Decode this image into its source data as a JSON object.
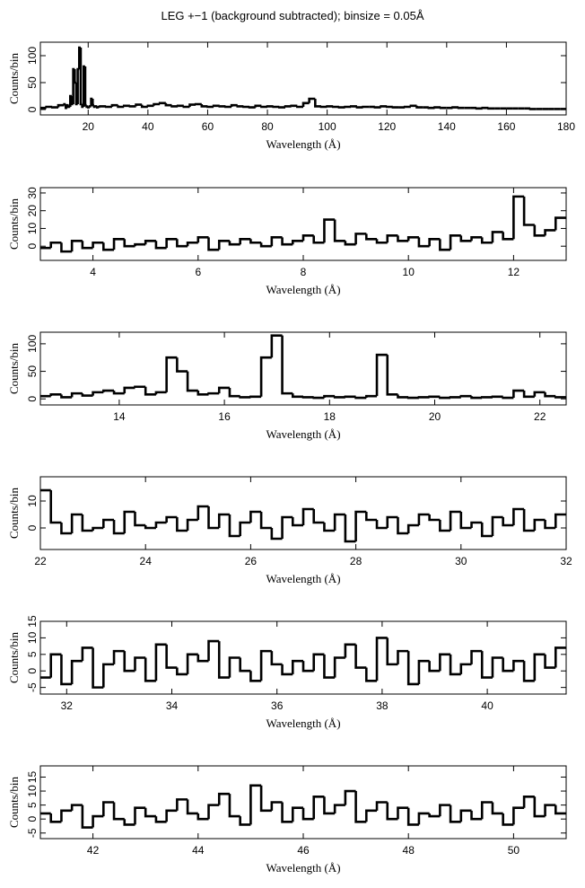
{
  "chart_data": [
    {
      "type": "histogram",
      "title": "LEG +−1 (background subtracted); binsize = 0.05Å",
      "xlabel": "Wavelength (Å)",
      "ylabel": "Counts/bin",
      "bins": [
        4,
        6,
        8,
        10,
        12,
        12.5,
        13,
        13.5,
        14,
        14.5,
        15,
        15.5,
        16,
        16.5,
        17,
        17.5,
        18,
        18.5,
        19,
        19.5,
        20,
        20.5,
        21,
        21.5,
        22,
        22.5,
        23,
        23.5,
        24,
        26,
        28,
        30,
        32,
        34,
        36,
        38,
        40,
        42,
        44,
        46,
        48,
        50,
        52,
        54,
        56,
        58,
        60,
        62,
        64,
        66,
        68,
        70,
        72,
        74,
        76,
        78,
        80,
        82,
        84,
        86,
        88,
        90,
        92,
        94,
        96,
        98,
        100,
        102,
        104,
        106,
        108,
        110,
        112,
        114,
        116,
        118,
        120,
        122,
        124,
        126,
        128,
        130,
        132,
        134,
        136,
        138,
        140,
        142,
        144,
        146,
        148,
        150,
        152,
        154,
        156,
        158,
        160,
        162,
        164,
        166,
        168,
        170,
        172,
        174,
        176,
        178,
        180
      ],
      "values": [
        3,
        5,
        4,
        8,
        10,
        3,
        8,
        5,
        25,
        10,
        75,
        50,
        10,
        75,
        115,
        10,
        5,
        80,
        8,
        5,
        4,
        6,
        20,
        8,
        5,
        6,
        4,
        5,
        6,
        5,
        8,
        5,
        7,
        6,
        9,
        5,
        7,
        10,
        12,
        8,
        6,
        7,
        5,
        9,
        10,
        6,
        5,
        7,
        6,
        5,
        8,
        6,
        5,
        4,
        7,
        5,
        6,
        5,
        4,
        6,
        7,
        5,
        12,
        20,
        6,
        5,
        6,
        5,
        4,
        5,
        6,
        4,
        5,
        5,
        4,
        6,
        5,
        4,
        4,
        5,
        7,
        4,
        4,
        3,
        4,
        3,
        3,
        4,
        3,
        3,
        3,
        2,
        3,
        2,
        2,
        2,
        2,
        2,
        2,
        2,
        1,
        1,
        1,
        1,
        1,
        1
      ],
      "color": "#000000",
      "xlim": [
        4,
        180
      ],
      "ylim": [
        -10,
        125
      ],
      "xticks": [
        20,
        40,
        60,
        80,
        100,
        120,
        140,
        160,
        180
      ],
      "yticks": [
        0,
        50,
        100
      ]
    },
    {
      "type": "histogram",
      "xlabel": "Wavelength (Å)",
      "ylabel": "Counts/bin",
      "bins": [
        3,
        3.2,
        3.4,
        3.6,
        3.8,
        4,
        4.2,
        4.4,
        4.6,
        4.8,
        5,
        5.2,
        5.4,
        5.6,
        5.8,
        6,
        6.2,
        6.4,
        6.6,
        6.8,
        7,
        7.2,
        7.4,
        7.6,
        7.8,
        8,
        8.2,
        8.4,
        8.6,
        8.8,
        9,
        9.2,
        9.4,
        9.6,
        9.8,
        10,
        10.2,
        10.4,
        10.6,
        10.8,
        11,
        11.2,
        11.4,
        11.6,
        11.8,
        12,
        12.2,
        12.4,
        12.6,
        12.8,
        13
      ],
      "values": [
        -1,
        2,
        -3,
        3,
        -1,
        2,
        -2,
        4,
        0,
        1,
        3,
        -1,
        4,
        0,
        2,
        5,
        -2,
        3,
        1,
        4,
        2,
        0,
        5,
        1,
        3,
        6,
        2,
        15,
        3,
        1,
        7,
        4,
        2,
        6,
        3,
        5,
        0,
        4,
        -2,
        6,
        3,
        5,
        2,
        8,
        4,
        28,
        12,
        6,
        9,
        16
      ],
      "color": "#000000",
      "xlim": [
        3,
        13
      ],
      "ylim": [
        -8,
        33
      ],
      "xticks": [
        4,
        6,
        8,
        10,
        12
      ],
      "yticks": [
        0,
        10,
        20,
        30
      ]
    },
    {
      "type": "histogram",
      "xlabel": "Wavelength (Å)",
      "ylabel": "Counts/bin",
      "bins": [
        12.5,
        12.7,
        12.9,
        13.1,
        13.3,
        13.5,
        13.7,
        13.9,
        14.1,
        14.3,
        14.5,
        14.7,
        14.9,
        15.1,
        15.3,
        15.5,
        15.7,
        15.9,
        16.1,
        16.3,
        16.5,
        16.7,
        16.9,
        17.1,
        17.3,
        17.5,
        17.7,
        17.9,
        18.1,
        18.3,
        18.5,
        18.7,
        18.9,
        19.1,
        19.3,
        19.5,
        19.7,
        19.9,
        20.1,
        20.3,
        20.5,
        20.7,
        20.9,
        21.1,
        21.3,
        21.5,
        21.7,
        21.9,
        22.1,
        22.3,
        22.5
      ],
      "values": [
        5,
        8,
        3,
        10,
        6,
        12,
        15,
        10,
        20,
        22,
        8,
        12,
        75,
        50,
        15,
        8,
        10,
        20,
        5,
        3,
        4,
        75,
        115,
        10,
        4,
        3,
        2,
        5,
        3,
        4,
        2,
        5,
        80,
        8,
        3,
        2,
        3,
        4,
        2,
        3,
        5,
        2,
        3,
        4,
        2,
        15,
        4,
        12,
        5,
        3
      ],
      "color": "#000000",
      "xlim": [
        12.5,
        22.5
      ],
      "ylim": [
        -11,
        121
      ],
      "xticks": [
        14,
        16,
        18,
        20,
        22
      ],
      "yticks": [
        0,
        50,
        100
      ]
    },
    {
      "type": "histogram",
      "xlabel": "Wavelength (Å)",
      "ylabel": "Counts/bin",
      "bins": [
        22,
        22.2,
        22.4,
        22.6,
        22.8,
        23,
        23.2,
        23.4,
        23.6,
        23.8,
        24,
        24.2,
        24.4,
        24.6,
        24.8,
        25,
        25.2,
        25.4,
        25.6,
        25.8,
        26,
        26.2,
        26.4,
        26.6,
        26.8,
        27,
        27.2,
        27.4,
        27.6,
        27.8,
        28,
        28.2,
        28.4,
        28.6,
        28.8,
        29,
        29.2,
        29.4,
        29.6,
        29.8,
        30,
        30.2,
        30.4,
        30.6,
        30.8,
        31,
        31.2,
        31.4,
        31.6,
        31.8,
        32
      ],
      "values": [
        14,
        2,
        -2,
        5,
        -1,
        0,
        3,
        -2,
        6,
        1,
        0,
        2,
        4,
        -1,
        3,
        8,
        0,
        5,
        -3,
        2,
        6,
        0,
        -4,
        4,
        1,
        7,
        2,
        -1,
        5,
        -5,
        6,
        3,
        0,
        4,
        -2,
        1,
        5,
        3,
        -1,
        6,
        0,
        2,
        -3,
        4,
        1,
        7,
        -1,
        3,
        0,
        5
      ],
      "color": "#000000",
      "xlim": [
        22,
        32
      ],
      "ylim": [
        -8,
        19
      ],
      "xticks": [
        22,
        24,
        26,
        28,
        30,
        32
      ],
      "yticks": [
        0,
        10
      ]
    },
    {
      "type": "histogram",
      "xlabel": "Wavelength (Å)",
      "ylabel": "Counts/bin",
      "bins": [
        31.5,
        31.7,
        31.9,
        32.1,
        32.3,
        32.5,
        32.7,
        32.9,
        33.1,
        33.3,
        33.5,
        33.7,
        33.9,
        34.1,
        34.3,
        34.5,
        34.7,
        34.9,
        35.1,
        35.3,
        35.5,
        35.7,
        35.9,
        36.1,
        36.3,
        36.5,
        36.7,
        36.9,
        37.1,
        37.3,
        37.5,
        37.7,
        37.9,
        38.1,
        38.3,
        38.5,
        38.7,
        38.9,
        39.1,
        39.3,
        39.5,
        39.7,
        39.9,
        40.1,
        40.3,
        40.5,
        40.7,
        40.9,
        41.1,
        41.3,
        41.5
      ],
      "values": [
        -2,
        5,
        -4,
        3,
        7,
        -5,
        2,
        6,
        0,
        4,
        -3,
        8,
        1,
        -1,
        5,
        3,
        9,
        -2,
        4,
        0,
        -3,
        6,
        2,
        -1,
        3,
        0,
        5,
        -2,
        4,
        8,
        1,
        -3,
        10,
        2,
        6,
        -4,
        3,
        0,
        5,
        -1,
        2,
        6,
        -2,
        4,
        0,
        3,
        -3,
        5,
        1,
        7
      ],
      "color": "#000000",
      "xlim": [
        31.5,
        41.5
      ],
      "ylim": [
        -7,
        15
      ],
      "xticks": [
        32,
        34,
        36,
        38,
        40
      ],
      "yticks": [
        -5,
        0,
        5,
        10,
        15
      ]
    },
    {
      "type": "histogram",
      "xlabel": "Wavelength (Å)",
      "ylabel": "Counts/bin",
      "bins": [
        41,
        41.2,
        41.4,
        41.6,
        41.8,
        42,
        42.2,
        42.4,
        42.6,
        42.8,
        43,
        43.2,
        43.4,
        43.6,
        43.8,
        44,
        44.2,
        44.4,
        44.6,
        44.8,
        45,
        45.2,
        45.4,
        45.6,
        45.8,
        46,
        46.2,
        46.4,
        46.6,
        46.8,
        47,
        47.2,
        47.4,
        47.6,
        47.8,
        48,
        48.2,
        48.4,
        48.6,
        48.8,
        49,
        49.2,
        49.4,
        49.6,
        49.8,
        50,
        50.2,
        50.4,
        50.6,
        50.8,
        51
      ],
      "values": [
        2,
        -1,
        3,
        5,
        -3,
        1,
        6,
        0,
        -2,
        4,
        1,
        -1,
        3,
        7,
        2,
        0,
        5,
        9,
        1,
        -2,
        12,
        3,
        6,
        -1,
        4,
        0,
        8,
        2,
        5,
        10,
        -1,
        3,
        6,
        0,
        4,
        -2,
        2,
        1,
        5,
        -1,
        3,
        0,
        6,
        2,
        -2,
        4,
        8,
        1,
        5,
        2
      ],
      "color": "#000000",
      "xlim": [
        41,
        51
      ],
      "ylim": [
        -7,
        19
      ],
      "xticks": [
        42,
        44,
        46,
        48,
        50
      ],
      "yticks": [
        -5,
        0,
        5,
        10,
        15
      ]
    }
  ]
}
